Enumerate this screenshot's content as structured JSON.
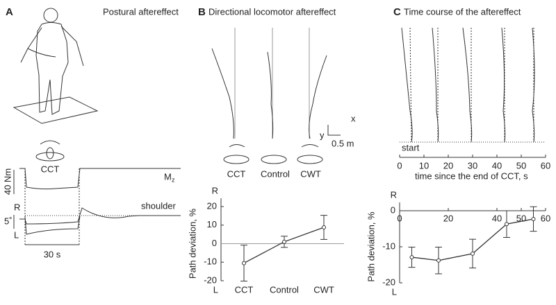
{
  "panels": {
    "a": {
      "letter": "A",
      "title": "Postural aftereffect",
      "rotation": "CCT",
      "torque_scale": "40 Nm",
      "torque_label": "M",
      "torque_sub": "z",
      "angle_scale": "5˚",
      "right": "R",
      "left": "L",
      "shoulder": "shoulder",
      "time_scale": "30 s"
    },
    "b": {
      "letter": "B",
      "title": "Directional locomotor aftereffect",
      "conditions": [
        "CCT",
        "Control",
        "CWT"
      ],
      "x_axis": "x",
      "y_axis": "y",
      "scale": "0.5 m"
    },
    "c": {
      "letter": "C",
      "title": "Time course of the aftereffect",
      "start": "start",
      "time_axis": {
        "xlim": [
          0,
          60
        ],
        "xticks": [
          0,
          10,
          20,
          30,
          40,
          50,
          60
        ],
        "xlabel": "time since the end of CCT, s"
      }
    }
  },
  "chart_data": [
    {
      "type": "line",
      "categories": [
        "CCT",
        "Control",
        "CWT"
      ],
      "values": [
        -10.5,
        1,
        8.8
      ],
      "errors": [
        9.7,
        3,
        6.5
      ],
      "ylim": [
        -20,
        20
      ],
      "yticks": [
        -20,
        -10,
        0,
        10,
        20
      ],
      "ylabel": "Path deviation, %",
      "top_label": "R",
      "bottom_label": "L",
      "color": "#333"
    },
    {
      "type": "line",
      "x": [
        5,
        16,
        30,
        44,
        55
      ],
      "values": [
        -12.9,
        -13.8,
        -11.9,
        -3.7,
        -2.3
      ],
      "errors": [
        2.8,
        3.7,
        4,
        3.7,
        3.4
      ],
      "xlim": [
        0,
        60
      ],
      "ylim": [
        -20,
        0
      ],
      "xticks": [
        0,
        20,
        40,
        50,
        60
      ],
      "yticks": [
        0,
        -10,
        -20
      ],
      "ylabel": "Path deviation, %",
      "top_label": "R",
      "bottom_label": "L",
      "color": "#333"
    }
  ]
}
